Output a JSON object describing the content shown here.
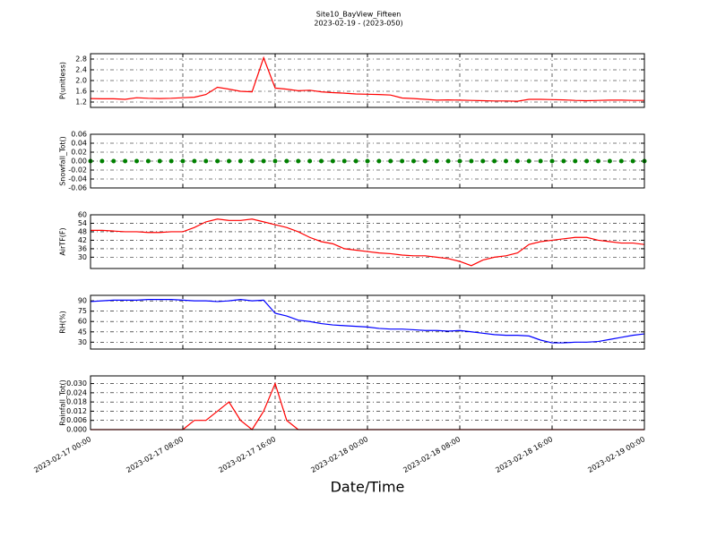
{
  "chart_data": [
    {
      "type": "line",
      "title": "Site10_BayView_Fifteen",
      "subtitle": "2023-02-19 - (2023-050)",
      "ylabel": "P(unitless)",
      "ylim": [
        1.0,
        3.0
      ],
      "yticks": [
        1.2,
        1.6,
        {
          "value": 2,
          "label": "2.0"
        },
        2.4,
        2.8
      ],
      "grid": true,
      "x": [
        "2023-02-17 00:00",
        "2023-02-17 01:00",
        "2023-02-17 02:00",
        "2023-02-17 03:00",
        "2023-02-17 04:00",
        "2023-02-17 05:00",
        "2023-02-17 06:00",
        "2023-02-17 07:00",
        "2023-02-17 08:00",
        "2023-02-17 09:00",
        "2023-02-17 10:00",
        "2023-02-17 11:00",
        "2023-02-17 12:00",
        "2023-02-17 13:00",
        "2023-02-17 14:00",
        "2023-02-17 15:00",
        "2023-02-17 16:00",
        "2023-02-17 17:00",
        "2023-02-17 18:00",
        "2023-02-17 19:00",
        "2023-02-17 20:00",
        "2023-02-17 21:00",
        "2023-02-17 22:00",
        "2023-02-17 23:00",
        "2023-02-18 00:00",
        "2023-02-18 01:00",
        "2023-02-18 02:00",
        "2023-02-18 03:00",
        "2023-02-18 04:00",
        "2023-02-18 05:00",
        "2023-02-18 06:00",
        "2023-02-18 07:00",
        "2023-02-18 08:00",
        "2023-02-18 09:00",
        "2023-02-18 10:00",
        "2023-02-18 11:00",
        "2023-02-18 12:00",
        "2023-02-18 13:00",
        "2023-02-18 14:00",
        "2023-02-18 15:00",
        "2023-02-18 16:00",
        "2023-02-18 17:00",
        "2023-02-18 18:00",
        "2023-02-18 19:00",
        "2023-02-18 20:00",
        "2023-02-18 21:00",
        "2023-02-18 22:00",
        "2023-02-18 23:00",
        "2023-02-19 00:00"
      ],
      "series": [
        {
          "color": "#ff0000",
          "values": [
            1.33,
            1.32,
            1.32,
            1.3,
            1.36,
            1.34,
            1.33,
            1.34,
            1.36,
            1.38,
            1.48,
            1.75,
            1.68,
            1.6,
            1.58,
            2.85,
            1.72,
            1.68,
            1.62,
            1.64,
            1.58,
            1.55,
            1.53,
            1.5,
            1.49,
            1.48,
            1.46,
            1.35,
            1.33,
            1.3,
            1.27,
            1.28,
            1.27,
            1.26,
            1.25,
            1.24,
            1.24,
            1.23,
            1.3,
            1.3,
            1.29,
            1.28,
            1.26,
            1.25,
            1.26,
            1.27,
            1.27,
            1.26,
            1.26
          ]
        }
      ]
    },
    {
      "type": "scatter",
      "ylabel": "Snowfall_Tot()",
      "ylim": [
        -0.06,
        0.06
      ],
      "yticks": [
        -0.06,
        -0.04,
        -0.02,
        {
          "value": 0,
          "label": "0.00"
        },
        0.02,
        0.04,
        0.06
      ],
      "grid": true,
      "x": [
        "2023-02-17 00:00",
        "2023-02-17 01:00",
        "2023-02-17 02:00",
        "2023-02-17 03:00",
        "2023-02-17 04:00",
        "2023-02-17 05:00",
        "2023-02-17 06:00",
        "2023-02-17 07:00",
        "2023-02-17 08:00",
        "2023-02-17 09:00",
        "2023-02-17 10:00",
        "2023-02-17 11:00",
        "2023-02-17 12:00",
        "2023-02-17 13:00",
        "2023-02-17 14:00",
        "2023-02-17 15:00",
        "2023-02-17 16:00",
        "2023-02-17 17:00",
        "2023-02-17 18:00",
        "2023-02-17 19:00",
        "2023-02-17 20:00",
        "2023-02-17 21:00",
        "2023-02-17 22:00",
        "2023-02-17 23:00",
        "2023-02-18 00:00",
        "2023-02-18 01:00",
        "2023-02-18 02:00",
        "2023-02-18 03:00",
        "2023-02-18 04:00",
        "2023-02-18 05:00",
        "2023-02-18 06:00",
        "2023-02-18 07:00",
        "2023-02-18 08:00",
        "2023-02-18 09:00",
        "2023-02-18 10:00",
        "2023-02-18 11:00",
        "2023-02-18 12:00",
        "2023-02-18 13:00",
        "2023-02-18 14:00",
        "2023-02-18 15:00",
        "2023-02-18 16:00",
        "2023-02-18 17:00",
        "2023-02-18 18:00",
        "2023-02-18 19:00",
        "2023-02-18 20:00",
        "2023-02-18 21:00",
        "2023-02-18 22:00",
        "2023-02-18 23:00",
        "2023-02-19 00:00"
      ],
      "series": [
        {
          "color": "#008000",
          "values": [
            0,
            0,
            0,
            0,
            0,
            0,
            0,
            0,
            0,
            0,
            0,
            0,
            0,
            0,
            0,
            0,
            0,
            0,
            0,
            0,
            0,
            0,
            0,
            0,
            0,
            0,
            0,
            0,
            0,
            0,
            0,
            0,
            0,
            0,
            0,
            0,
            0,
            0,
            0,
            0,
            0,
            0,
            0,
            0,
            0,
            0,
            0,
            0,
            0
          ]
        }
      ]
    },
    {
      "type": "line",
      "ylabel": "AirTF(F)",
      "ylim": [
        22,
        60
      ],
      "yticks": [
        30,
        36,
        42,
        48,
        54,
        60
      ],
      "grid": true,
      "x": [
        "2023-02-17 00:00",
        "2023-02-17 01:00",
        "2023-02-17 02:00",
        "2023-02-17 03:00",
        "2023-02-17 04:00",
        "2023-02-17 05:00",
        "2023-02-17 06:00",
        "2023-02-17 07:00",
        "2023-02-17 08:00",
        "2023-02-17 09:00",
        "2023-02-17 10:00",
        "2023-02-17 11:00",
        "2023-02-17 12:00",
        "2023-02-17 13:00",
        "2023-02-17 14:00",
        "2023-02-17 15:00",
        "2023-02-17 16:00",
        "2023-02-17 17:00",
        "2023-02-17 18:00",
        "2023-02-17 19:00",
        "2023-02-17 20:00",
        "2023-02-17 21:00",
        "2023-02-17 22:00",
        "2023-02-17 23:00",
        "2023-02-18 00:00",
        "2023-02-18 01:00",
        "2023-02-18 02:00",
        "2023-02-18 03:00",
        "2023-02-18 04:00",
        "2023-02-18 05:00",
        "2023-02-18 06:00",
        "2023-02-18 07:00",
        "2023-02-18 08:00",
        "2023-02-18 09:00",
        "2023-02-18 10:00",
        "2023-02-18 11:00",
        "2023-02-18 12:00",
        "2023-02-18 13:00",
        "2023-02-18 14:00",
        "2023-02-18 15:00",
        "2023-02-18 16:00",
        "2023-02-18 17:00",
        "2023-02-18 18:00",
        "2023-02-18 19:00",
        "2023-02-18 20:00",
        "2023-02-18 21:00",
        "2023-02-18 22:00",
        "2023-02-18 23:00",
        "2023-02-19 00:00"
      ],
      "series": [
        {
          "color": "#ff0000",
          "values": [
            49,
            49,
            48.5,
            48,
            48,
            47.5,
            47.5,
            48,
            48,
            51,
            55,
            57,
            56,
            56,
            57,
            55,
            53,
            51,
            48,
            44,
            41,
            39.5,
            36,
            35,
            34,
            33,
            32.5,
            31.5,
            31,
            31,
            30,
            29,
            27,
            24,
            28,
            30,
            31,
            33,
            39,
            41,
            42,
            43,
            44,
            44,
            42,
            41,
            40,
            40,
            39
          ]
        }
      ]
    },
    {
      "type": "line",
      "ylabel": "RH(%)",
      "ylim": [
        20,
        98
      ],
      "yticks": [
        30,
        45,
        60,
        75,
        90
      ],
      "grid": true,
      "x": [
        "2023-02-17 00:00",
        "2023-02-17 01:00",
        "2023-02-17 02:00",
        "2023-02-17 03:00",
        "2023-02-17 04:00",
        "2023-02-17 05:00",
        "2023-02-17 06:00",
        "2023-02-17 07:00",
        "2023-02-17 08:00",
        "2023-02-17 09:00",
        "2023-02-17 10:00",
        "2023-02-17 11:00",
        "2023-02-17 12:00",
        "2023-02-17 13:00",
        "2023-02-17 14:00",
        "2023-02-17 15:00",
        "2023-02-17 16:00",
        "2023-02-17 17:00",
        "2023-02-17 18:00",
        "2023-02-17 19:00",
        "2023-02-17 20:00",
        "2023-02-17 21:00",
        "2023-02-17 22:00",
        "2023-02-17 23:00",
        "2023-02-18 00:00",
        "2023-02-18 01:00",
        "2023-02-18 02:00",
        "2023-02-18 03:00",
        "2023-02-18 04:00",
        "2023-02-18 05:00",
        "2023-02-18 06:00",
        "2023-02-18 07:00",
        "2023-02-18 08:00",
        "2023-02-18 09:00",
        "2023-02-18 10:00",
        "2023-02-18 11:00",
        "2023-02-18 12:00",
        "2023-02-18 13:00",
        "2023-02-18 14:00",
        "2023-02-18 15:00",
        "2023-02-18 16:00",
        "2023-02-18 17:00",
        "2023-02-18 18:00",
        "2023-02-18 19:00",
        "2023-02-18 20:00",
        "2023-02-18 21:00",
        "2023-02-18 22:00",
        "2023-02-18 23:00",
        "2023-02-19 00:00"
      ],
      "series": [
        {
          "color": "#0000ff",
          "values": [
            89,
            90,
            91,
            91,
            91,
            92,
            92,
            92,
            91,
            90,
            90,
            89,
            90,
            92,
            90,
            91,
            72,
            68,
            62,
            60,
            57,
            55,
            54,
            53,
            52,
            50,
            49,
            49,
            48,
            47,
            47,
            46,
            47,
            45,
            43,
            41,
            40,
            40,
            39,
            33,
            29,
            29,
            30,
            30,
            31,
            34,
            37,
            40,
            42
          ]
        }
      ]
    },
    {
      "type": "line",
      "ylabel": "Rainfall_Tot()",
      "xlabel": "Date/Time",
      "ylim": [
        0,
        0.035
      ],
      "yticks": [
        {
          "value": 0,
          "label": "0.000"
        },
        0.006,
        0.012,
        0.018,
        0.024,
        {
          "value": 0.03,
          "label": "0.030"
        }
      ],
      "grid": true,
      "xlim": [
        "2023-02-17 00:00",
        "2023-02-19 00:00"
      ],
      "xticks": [
        "2023-02-17 00:00",
        "2023-02-17 08:00",
        "2023-02-17 16:00",
        "2023-02-18 00:00",
        "2023-02-18 08:00",
        "2023-02-18 16:00",
        "2023-02-19 00:00"
      ],
      "x": [
        "2023-02-17 00:00",
        "2023-02-17 01:00",
        "2023-02-17 02:00",
        "2023-02-17 03:00",
        "2023-02-17 04:00",
        "2023-02-17 05:00",
        "2023-02-17 06:00",
        "2023-02-17 07:00",
        "2023-02-17 08:00",
        "2023-02-17 09:00",
        "2023-02-17 10:00",
        "2023-02-17 11:00",
        "2023-02-17 12:00",
        "2023-02-17 13:00",
        "2023-02-17 14:00",
        "2023-02-17 15:00",
        "2023-02-17 16:00",
        "2023-02-17 17:00",
        "2023-02-17 18:00",
        "2023-02-17 19:00",
        "2023-02-17 20:00",
        "2023-02-17 21:00",
        "2023-02-17 22:00",
        "2023-02-17 23:00",
        "2023-02-18 00:00",
        "2023-02-18 01:00",
        "2023-02-18 02:00",
        "2023-02-18 03:00",
        "2023-02-18 04:00",
        "2023-02-18 05:00",
        "2023-02-18 06:00",
        "2023-02-18 07:00",
        "2023-02-18 08:00",
        "2023-02-18 09:00",
        "2023-02-18 10:00",
        "2023-02-18 11:00",
        "2023-02-18 12:00",
        "2023-02-18 13:00",
        "2023-02-18 14:00",
        "2023-02-18 15:00",
        "2023-02-18 16:00",
        "2023-02-18 17:00",
        "2023-02-18 18:00",
        "2023-02-18 19:00",
        "2023-02-18 20:00",
        "2023-02-18 21:00",
        "2023-02-18 22:00",
        "2023-02-18 23:00",
        "2023-02-19 00:00"
      ],
      "series": [
        {
          "color": "#ff0000",
          "values": [
            0,
            0,
            0,
            0,
            0,
            0,
            0,
            0,
            0,
            0.006,
            0.006,
            0.012,
            0.018,
            0.006,
            0,
            0.012,
            0.03,
            0.006,
            0,
            0,
            0,
            0,
            0,
            0,
            0,
            0,
            0,
            0,
            0,
            0,
            0,
            0,
            0,
            0,
            0,
            0,
            0,
            0,
            0,
            0,
            0,
            0,
            0,
            0,
            0,
            0,
            0,
            0,
            0
          ]
        }
      ]
    }
  ]
}
